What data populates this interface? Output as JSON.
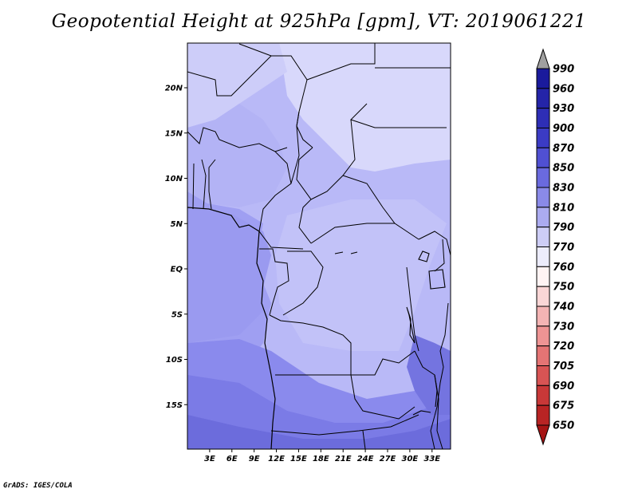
{
  "title": "Geopotential Height at 925hPa [gpm], VT: 2019061221",
  "credit": "GrADS: IGES/COLA",
  "map": {
    "lat_ticks": [
      "20N",
      "15N",
      "10N",
      "5N",
      "EQ",
      "5S",
      "10S",
      "15S"
    ],
    "lon_ticks": [
      "3E",
      "6E",
      "9E",
      "12E",
      "15E",
      "18E",
      "21E",
      "24E",
      "27E",
      "30E",
      "33E"
    ],
    "lat_values": [
      20,
      15,
      10,
      5,
      0,
      -5,
      -10,
      -15
    ],
    "lon_values": [
      3,
      6,
      9,
      12,
      15,
      18,
      21,
      24,
      27,
      30,
      33
    ]
  },
  "colorbar": {
    "labels": [
      "990",
      "960",
      "930",
      "900",
      "870",
      "850",
      "830",
      "810",
      "790",
      "770",
      "760",
      "750",
      "740",
      "730",
      "720",
      "705",
      "690",
      "675",
      "650"
    ],
    "colors": [
      "#7b7bf2",
      "#1a1a9c",
      "#2424a8",
      "#2e2eb6",
      "#3b3bc4",
      "#5050d2",
      "#6a6ade",
      "#8a8ae8",
      "#ababf0",
      "#cdcdf6",
      "#ececfc",
      "#fff4f4",
      "#fad6d6",
      "#f4b4b4",
      "#ee9494",
      "#e47474",
      "#d85454",
      "#c83838",
      "#b82424",
      "#a61414"
    ]
  },
  "legend_colors": {
    "c790": "#d6d6fb",
    "c810": "#bcbcf8",
    "c830": "#a4a4f4",
    "c850": "#8c8cee",
    "c870": "#7474e4"
  }
}
